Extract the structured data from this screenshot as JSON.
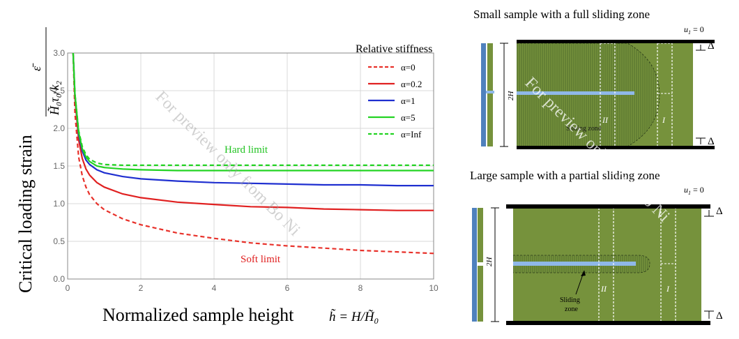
{
  "chart_data": {
    "type": "line",
    "ylabel": "Critical loading strain",
    "ylabel_formula_top": "ε̄",
    "ylabel_formula_bottom_left": "H̃",
    "ylabel_formula_bottom_sub": "0",
    "ylabel_formula_bottom_rest": "τ",
    "ylabel_formula_tau_sub": "0",
    "ylabel_formula_k": "/k",
    "ylabel_formula_k_sub": "2",
    "xlabel": "Normalized sample height",
    "xlabel_formula_h": "h̃",
    "xlabel_formula_eq": " = H/",
    "xlabel_formula_H": "H̃",
    "xlabel_formula_H_sub": "0",
    "xlim": [
      0,
      10
    ],
    "ylim": [
      0,
      3
    ],
    "xticks": [
      "0",
      "2",
      "4",
      "6",
      "8",
      "10"
    ],
    "yticks": [
      "0.0",
      "0.5",
      "1.0",
      "1.5",
      "2.0",
      "2.5",
      "3.0"
    ],
    "grid": true,
    "legend_title": "Relative stiffness",
    "legend_position": "top-right",
    "series": [
      {
        "name": "α=0",
        "color": "#e8312a",
        "dash": true,
        "x": [
          0.15,
          0.2,
          0.3,
          0.4,
          0.5,
          0.6,
          0.8,
          1.0,
          1.5,
          2,
          3,
          4,
          5,
          6,
          7,
          8,
          9,
          10
        ],
        "y": [
          3.0,
          2.2,
          1.62,
          1.37,
          1.22,
          1.12,
          1.0,
          0.92,
          0.8,
          0.72,
          0.61,
          0.54,
          0.48,
          0.44,
          0.41,
          0.38,
          0.36,
          0.34
        ]
      },
      {
        "name": "α=0.2",
        "color": "#e02020",
        "dash": false,
        "x": [
          0.15,
          0.2,
          0.3,
          0.4,
          0.5,
          0.6,
          0.8,
          1.0,
          1.5,
          2,
          3,
          4,
          5,
          6,
          7,
          8,
          9,
          10
        ],
        "y": [
          3.0,
          2.4,
          1.85,
          1.6,
          1.46,
          1.38,
          1.28,
          1.22,
          1.13,
          1.08,
          1.02,
          0.99,
          0.96,
          0.95,
          0.93,
          0.92,
          0.91,
          0.91
        ]
      },
      {
        "name": "α=1",
        "color": "#1f2fd0",
        "dash": false,
        "x": [
          0.15,
          0.2,
          0.3,
          0.4,
          0.5,
          0.6,
          0.8,
          1.0,
          1.5,
          2,
          3,
          4,
          5,
          6,
          7,
          8,
          9,
          10
        ],
        "y": [
          3.0,
          2.45,
          1.92,
          1.7,
          1.58,
          1.52,
          1.45,
          1.41,
          1.36,
          1.33,
          1.3,
          1.28,
          1.27,
          1.26,
          1.25,
          1.25,
          1.24,
          1.24
        ]
      },
      {
        "name": "α=5",
        "color": "#22d322",
        "dash": false,
        "x": [
          0.15,
          0.2,
          0.3,
          0.4,
          0.5,
          0.6,
          0.8,
          1.0,
          1.5,
          2,
          3,
          4,
          5,
          6,
          7,
          8,
          9,
          10
        ],
        "y": [
          3.0,
          2.45,
          1.95,
          1.73,
          1.62,
          1.56,
          1.5,
          1.48,
          1.46,
          1.45,
          1.44,
          1.44,
          1.44,
          1.44,
          1.44,
          1.44,
          1.44,
          1.44
        ]
      },
      {
        "name": "α=Inf",
        "color": "#22d322",
        "dash": true,
        "x": [
          0.15,
          0.2,
          0.3,
          0.4,
          0.5,
          0.6,
          0.8,
          1.0,
          1.5,
          2,
          3,
          4,
          5,
          6,
          7,
          8,
          9,
          10
        ],
        "y": [
          3.0,
          2.46,
          1.97,
          1.76,
          1.65,
          1.59,
          1.54,
          1.52,
          1.51,
          1.51,
          1.51,
          1.51,
          1.51,
          1.51,
          1.51,
          1.51,
          1.51,
          1.51
        ]
      }
    ],
    "annotations": [
      {
        "text": "Hard limit",
        "color": "#22c322"
      },
      {
        "text": "Soft limit",
        "color": "#e02020"
      }
    ]
  },
  "watermark": "For preview only from Bo Ni",
  "diagram_top": {
    "title": "Small sample with a full sliding zone",
    "u_label": "u",
    "u_sub": "1",
    "u_eq": " = 0",
    "delta": "Δ",
    "height_label": "2H",
    "region_two": "II",
    "region_one": "I",
    "sliding_label": "Sliding zone"
  },
  "diagram_bottom": {
    "title": "Large sample with a partial sliding zone",
    "u_label": "u",
    "u_sub": "1",
    "u_eq": " = 0",
    "delta": "Δ",
    "height_label": "2H",
    "region_two": "II",
    "region_one": "I",
    "sliding_label_1": "Sliding",
    "sliding_label_2": "zone"
  },
  "colors": {
    "sample_green": "#76923c",
    "crack_blue": "#8fb8e8",
    "side_blue": "#4f81bd"
  }
}
